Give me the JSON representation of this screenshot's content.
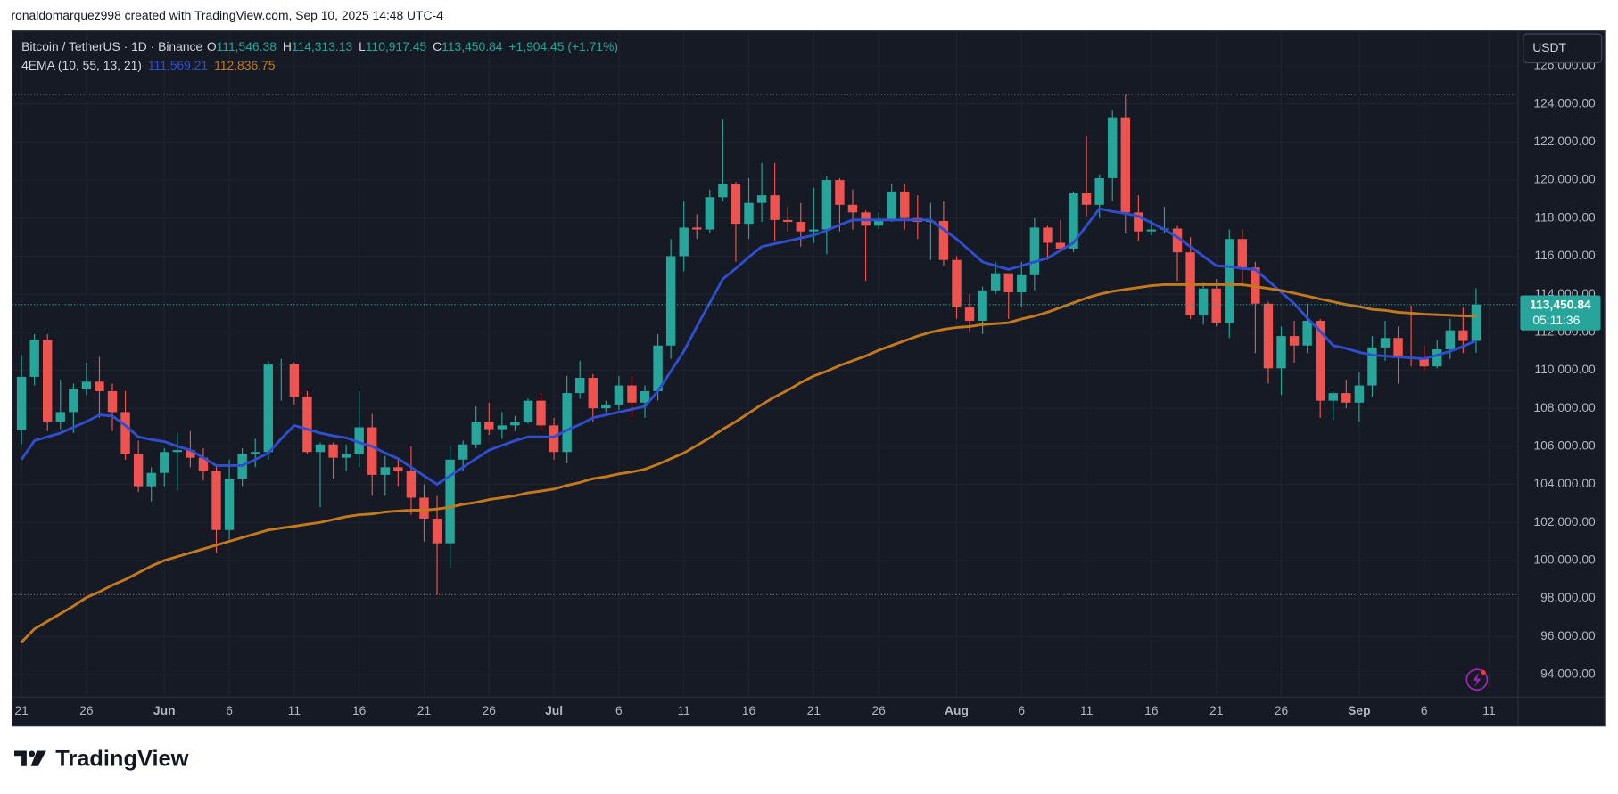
{
  "page": {
    "attribution": "ronaldomarquez998 created with TradingView.com, Sep 10, 2025 14:48 UTC-4",
    "currency": "USDT",
    "brand": "TradingView"
  },
  "chart_data": {
    "type": "candlestick",
    "symbol": "Bitcoin / TetherUS · 1D · Binance",
    "legend_ohlc": [
      {
        "label": "O",
        "value": "111,546.38"
      },
      {
        "label": "H",
        "value": "114,313.13"
      },
      {
        "label": "L",
        "value": "110,917.45"
      },
      {
        "label": "C",
        "value": "113,450.84"
      }
    ],
    "change": "+1,904.45 (+1.71%)",
    "indicator": "4EMA (10, 55, 13, 21)",
    "last_price_label": "113,450.84",
    "countdown": "05:11:36",
    "up_color": "#26a69a",
    "down_color": "#ef5350",
    "grid": true,
    "categories": [
      "May 21",
      "May 22",
      "May 23",
      "May 24",
      "May 25",
      "May 26",
      "May 27",
      "May 28",
      "May 29",
      "May 30",
      "May 31",
      "Jun 1",
      "Jun 2",
      "Jun 3",
      "Jun 4",
      "Jun 5",
      "Jun 6",
      "Jun 7",
      "Jun 8",
      "Jun 9",
      "Jun 10",
      "Jun 11",
      "Jun 12",
      "Jun 13",
      "Jun 14",
      "Jun 15",
      "Jun 16",
      "Jun 17",
      "Jun 18",
      "Jun 19",
      "Jun 20",
      "Jun 21",
      "Jun 22",
      "Jun 23",
      "Jun 24",
      "Jun 25",
      "Jun 26",
      "Jun 27",
      "Jun 28",
      "Jun 29",
      "Jun 30",
      "Jul 1",
      "Jul 2",
      "Jul 3",
      "Jul 4",
      "Jul 5",
      "Jul 6",
      "Jul 7",
      "Jul 8",
      "Jul 9",
      "Jul 10",
      "Jul 11",
      "Jul 12",
      "Jul 13",
      "Jul 14",
      "Jul 15",
      "Jul 16",
      "Jul 17",
      "Jul 18",
      "Jul 19",
      "Jul 20",
      "Jul 21",
      "Jul 22",
      "Jul 23",
      "Jul 24",
      "Jul 25",
      "Jul 26",
      "Jul 27",
      "Jul 28",
      "Jul 29",
      "Jul 30",
      "Jul 31",
      "Aug 1",
      "Aug 2",
      "Aug 3",
      "Aug 4",
      "Aug 5",
      "Aug 6",
      "Aug 7",
      "Aug 8",
      "Aug 9",
      "Aug 10",
      "Aug 11",
      "Aug 12",
      "Aug 13",
      "Aug 14",
      "Aug 15",
      "Aug 16",
      "Aug 17",
      "Aug 18",
      "Aug 19",
      "Aug 20",
      "Aug 21",
      "Aug 22",
      "Aug 23",
      "Aug 24",
      "Aug 25",
      "Aug 26",
      "Aug 27",
      "Aug 28",
      "Aug 29",
      "Aug 30",
      "Aug 31",
      "Sep 1",
      "Sep 2",
      "Sep 3",
      "Sep 4",
      "Sep 5",
      "Sep 6",
      "Sep 7",
      "Sep 8",
      "Sep 9",
      "Sep 10",
      "Sep 11"
    ],
    "open": [
      106850,
      109650,
      111600,
      107300,
      107800,
      109000,
      109400,
      108900,
      107800,
      105600,
      103900,
      104600,
      105700,
      105800,
      105400,
      104700,
      101600,
      104300,
      105600,
      105700,
      110300,
      110350,
      108600,
      105700,
      106100,
      105400,
      105600,
      107000,
      104500,
      104900,
      104700,
      103300,
      102200,
      100900,
      105300,
      106100,
      107300,
      106900,
      107100,
      107300,
      108400,
      107100,
      105700,
      108800,
      109600,
      108000,
      108200,
      109200,
      108300,
      108900,
      111300,
      116000,
      117500,
      117400,
      119100,
      119800,
      117700,
      118800,
      119200,
      117900,
      117800,
      117300,
      117400,
      120000,
      118700,
      118300,
      117600,
      117900,
      119400,
      118000,
      117800,
      117850,
      115800,
      113300,
      112600,
      114200,
      115100,
      114100,
      115000,
      117500,
      116700,
      116400,
      119300,
      118700,
      120100,
      123300,
      118300,
      117300,
      117400,
      117450,
      116200,
      112900,
      114300,
      112500,
      116900,
      115400,
      113500,
      110100,
      111800,
      111300,
      112600,
      108400,
      108800,
      108300,
      109200,
      111200,
      111700,
      110700,
      110600,
      110200,
      111100,
      112100,
      111546.38,
      null
    ],
    "high": [
      110800,
      111900,
      111900,
      109500,
      109300,
      110400,
      110700,
      109300,
      108900,
      106300,
      104900,
      105900,
      106700,
      106800,
      105900,
      105000,
      105300,
      105900,
      106400,
      110500,
      110600,
      110400,
      108900,
      106200,
      106200,
      106100,
      108900,
      107700,
      105500,
      105300,
      106000,
      104000,
      103400,
      106000,
      106300,
      108100,
      108300,
      107800,
      107600,
      108500,
      108800,
      107500,
      109700,
      110500,
      109800,
      108400,
      109700,
      109700,
      109200,
      111900,
      116900,
      118900,
      118200,
      119500,
      123200,
      119900,
      120100,
      120900,
      120900,
      118600,
      118800,
      119600,
      120200,
      120100,
      119500,
      118400,
      118300,
      119800,
      119800,
      119200,
      118800,
      118900,
      116000,
      114000,
      114400,
      115700,
      115100,
      115700,
      118000,
      117600,
      117900,
      119400,
      122300,
      120300,
      123700,
      124500,
      119200,
      117900,
      118600,
      117600,
      117000,
      114600,
      114800,
      117400,
      117400,
      115700,
      113600,
      112300,
      112600,
      113500,
      112700,
      108900,
      109500,
      109900,
      111800,
      112600,
      112300,
      113400,
      111300,
      111600,
      112700,
      113300,
      114313.13,
      null
    ],
    "low": [
      106100,
      109200,
      106800,
      106900,
      106700,
      108700,
      107500,
      106800,
      105300,
      103600,
      103100,
      103900,
      103700,
      104900,
      104200,
      100400,
      101100,
      103900,
      104900,
      105300,
      108400,
      108200,
      105600,
      102800,
      104300,
      104700,
      104900,
      103400,
      103400,
      103900,
      102400,
      101000,
      98200,
      99600,
      104700,
      105900,
      106600,
      106400,
      106800,
      107200,
      106800,
      105300,
      105100,
      108500,
      107300,
      107800,
      107900,
      107500,
      107500,
      108400,
      110600,
      115200,
      116900,
      117200,
      118900,
      115700,
      116900,
      117800,
      116800,
      117300,
      116500,
      116700,
      116100,
      117300,
      117400,
      114700,
      117400,
      117800,
      117400,
      116900,
      115800,
      115500,
      112700,
      112000,
      111900,
      114000,
      112700,
      113300,
      114200,
      115800,
      116300,
      116200,
      118100,
      118000,
      118900,
      117200,
      116800,
      117100,
      117200,
      114700,
      112700,
      112400,
      112300,
      111700,
      114400,
      110900,
      109300,
      108700,
      110400,
      110900,
      107500,
      107400,
      108000,
      107300,
      108600,
      110500,
      109300,
      110200,
      110000,
      110100,
      110600,
      110900,
      110917.45,
      null
    ],
    "close": [
      109650,
      111600,
      107300,
      107800,
      109000,
      109400,
      108900,
      107800,
      105600,
      103900,
      104600,
      105700,
      105800,
      105400,
      104700,
      101600,
      104300,
      105600,
      105700,
      110300,
      110350,
      108600,
      105700,
      106100,
      105400,
      105600,
      107000,
      104500,
      104900,
      104700,
      103300,
      102200,
      100900,
      105300,
      106100,
      107300,
      106900,
      107100,
      107300,
      108400,
      107100,
      105700,
      108800,
      109600,
      108000,
      108200,
      109200,
      108300,
      108900,
      111300,
      116000,
      117500,
      117400,
      119100,
      119800,
      117700,
      118800,
      119200,
      117900,
      117800,
      117300,
      117400,
      120000,
      118700,
      118300,
      117600,
      117900,
      119400,
      118000,
      117800,
      117850,
      115800,
      113300,
      112600,
      114200,
      115100,
      114100,
      115000,
      117500,
      116700,
      116400,
      119300,
      118700,
      120100,
      123300,
      118300,
      117300,
      117400,
      117450,
      116200,
      112900,
      114300,
      112500,
      116900,
      115400,
      113500,
      110100,
      111800,
      111300,
      112600,
      108400,
      108800,
      108300,
      109200,
      111200,
      111700,
      110700,
      110600,
      110200,
      111100,
      112100,
      111546.38,
      113450.84,
      null
    ],
    "lines": [
      {
        "color": "#2f4fd0",
        "legend_value": "111,569.21",
        "values": [
          105300,
          106300,
          106500,
          106700,
          107000,
          107300,
          107650,
          107600,
          107100,
          106500,
          106350,
          106250,
          106000,
          105800,
          105400,
          104990,
          104990,
          104990,
          105300,
          105650,
          106400,
          107100,
          106900,
          106700,
          106550,
          106450,
          106200,
          106000,
          105650,
          105350,
          104900,
          104450,
          104000,
          104450,
          104900,
          105350,
          105800,
          106050,
          106300,
          106500,
          106500,
          106500,
          106850,
          107150,
          107500,
          107650,
          107800,
          107950,
          108100,
          108900,
          109950,
          111000,
          112300,
          113550,
          114800,
          115350,
          115950,
          116500,
          116650,
          116800,
          116950,
          117100,
          117350,
          117650,
          117900,
          117900,
          117900,
          117900,
          117900,
          117900,
          117900,
          117400,
          116900,
          116300,
          115700,
          115500,
          115300,
          115500,
          115700,
          115900,
          116300,
          116700,
          117600,
          118500,
          118350,
          118250,
          118100,
          117750,
          117400,
          117000,
          116500,
          116000,
          115500,
          115450,
          115350,
          115300,
          114700,
          114100,
          113500,
          112750,
          112050,
          111300,
          111150,
          110950,
          110800,
          110750,
          110700,
          110650,
          110600,
          110800,
          111000,
          111250,
          111569.21,
          null
        ]
      },
      {
        "color": "#c47a1c",
        "legend_value": "112,836.75",
        "values": [
          95700,
          96400,
          96800,
          97200,
          97600,
          98050,
          98350,
          98700,
          99000,
          99350,
          99700,
          100000,
          100200,
          100400,
          100600,
          100800,
          101000,
          101200,
          101400,
          101600,
          101700,
          101800,
          101900,
          102000,
          102150,
          102300,
          102400,
          102450,
          102550,
          102600,
          102650,
          102650,
          102700,
          102800,
          102950,
          103050,
          103200,
          103300,
          103400,
          103550,
          103650,
          103750,
          103950,
          104100,
          104300,
          104400,
          104550,
          104650,
          104800,
          105050,
          105350,
          105650,
          106050,
          106450,
          106900,
          107300,
          107750,
          108200,
          108600,
          108950,
          109350,
          109700,
          109950,
          110250,
          110500,
          110750,
          111050,
          111300,
          111550,
          111800,
          112000,
          112150,
          112250,
          112300,
          112400,
          112450,
          112500,
          112700,
          112850,
          113050,
          113300,
          113550,
          113800,
          114000,
          114150,
          114250,
          114350,
          114450,
          114500,
          114500,
          114500,
          114500,
          114500,
          114500,
          114500,
          114400,
          114300,
          114200,
          114050,
          113900,
          113750,
          113600,
          113450,
          113350,
          113200,
          113150,
          113050,
          113000,
          112950,
          112920,
          112890,
          112860,
          112836.75,
          null
        ]
      }
    ],
    "ylim": [
      92809,
      127844
    ],
    "yticks": [
      {
        "value": 94000,
        "label": "94,000.00"
      },
      {
        "value": 96000,
        "label": "96,000.00"
      },
      {
        "value": 98000,
        "label": "98,000.00"
      },
      {
        "value": 100000,
        "label": "100,000.00"
      },
      {
        "value": 102000,
        "label": "102,000.00"
      },
      {
        "value": 104000,
        "label": "104,000.00"
      },
      {
        "value": 106000,
        "label": "106,000.00"
      },
      {
        "value": 108000,
        "label": "108,000.00"
      },
      {
        "value": 110000,
        "label": "110,000.00"
      },
      {
        "value": 112000,
        "label": "112,000.00"
      },
      {
        "value": 114000,
        "label": "114,000.00"
      },
      {
        "value": 116000,
        "label": "116,000.00"
      },
      {
        "value": 118000,
        "label": "118,000.00"
      },
      {
        "value": 120000,
        "label": "120,000.00"
      },
      {
        "value": 122000,
        "label": "122,000.00"
      },
      {
        "value": 124000,
        "label": "124,000.00"
      },
      {
        "value": 126000,
        "label": "126,000.00"
      }
    ],
    "xticks": [
      {
        "value": "May 21",
        "label": "21"
      },
      {
        "value": "May 26",
        "label": "26"
      },
      {
        "value": "Jun 1",
        "label": "Jun"
      },
      {
        "value": "Jun 6",
        "label": "6"
      },
      {
        "value": "Jun 11",
        "label": "11"
      },
      {
        "value": "Jun 16",
        "label": "16"
      },
      {
        "value": "Jun 21",
        "label": "21"
      },
      {
        "value": "Jun 26",
        "label": "26"
      },
      {
        "value": "Jul 1",
        "label": "Jul"
      },
      {
        "value": "Jul 6",
        "label": "6"
      },
      {
        "value": "Jul 11",
        "label": "11"
      },
      {
        "value": "Jul 16",
        "label": "16"
      },
      {
        "value": "Jul 21",
        "label": "21"
      },
      {
        "value": "Jul 26",
        "label": "26"
      },
      {
        "value": "Aug 1",
        "label": "Aug"
      },
      {
        "value": "Aug 6",
        "label": "6"
      },
      {
        "value": "Aug 11",
        "label": "11"
      },
      {
        "value": "Aug 16",
        "label": "16"
      },
      {
        "value": "Aug 21",
        "label": "21"
      },
      {
        "value": "Aug 26",
        "label": "26"
      },
      {
        "value": "Sep 1",
        "label": "Sep"
      },
      {
        "value": "Sep 6",
        "label": "6"
      },
      {
        "value": "Sep 11",
        "label": "11"
      }
    ]
  }
}
